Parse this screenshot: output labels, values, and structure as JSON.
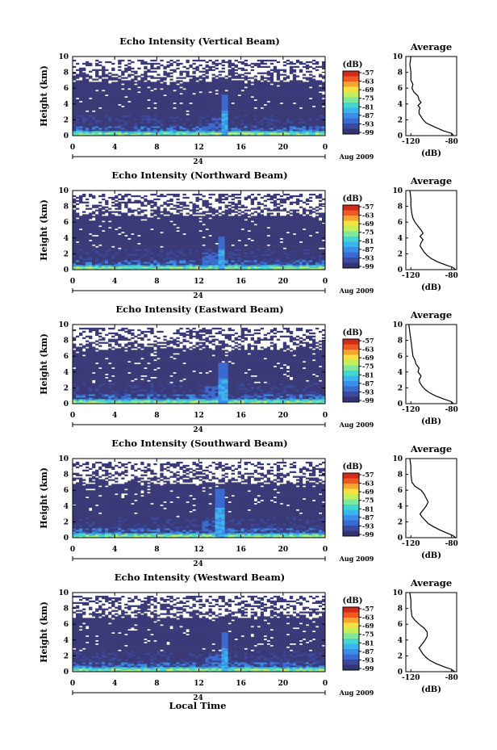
{
  "colors": {
    "background_echo": "#3a3a78",
    "colormap": [
      "#343474",
      "#3b4a9c",
      "#3a6ad0",
      "#3a8ee8",
      "#3ab6ec",
      "#42d6d2",
      "#7ee8a0",
      "#c6ee5a",
      "#f6e042",
      "#f6a62e",
      "#ee5a22",
      "#d42a1a"
    ]
  },
  "footer": {
    "local_time_label": "Local Time"
  },
  "chart_data": [
    {
      "type": "heatmap",
      "title": "Echo Intensity (Vertical Beam)",
      "ylabel": "Height (km)",
      "xticks": [
        "0",
        "4",
        "8",
        "12",
        "16",
        "20",
        "0"
      ],
      "yticks": [
        "0",
        "2",
        "4",
        "6",
        "8",
        "10"
      ],
      "xlim": [
        0,
        24
      ],
      "ylim": [
        0,
        10
      ],
      "date_mid": "24",
      "date_label": "Aug 2009",
      "colorbar": {
        "unit": "(dB)",
        "ticks": [
          "-57",
          "-63",
          "-69",
          "-75",
          "-81",
          "-87",
          "-93",
          "-99"
        ]
      },
      "spike_hour": 14.5,
      "spike_top_km": 5.2,
      "profile": {
        "title": "Average",
        "xlabel": "(dB)",
        "xticks": [
          "-120",
          "-80"
        ],
        "xlim": [
          -125,
          -75
        ],
        "points": [
          [
            -78,
            0
          ],
          [
            -80,
            0.3
          ],
          [
            -88,
            0.6
          ],
          [
            -95,
            1.0
          ],
          [
            -100,
            1.3
          ],
          [
            -105,
            1.6
          ],
          [
            -108,
            2.0
          ],
          [
            -110,
            2.4
          ],
          [
            -112,
            2.8
          ],
          [
            -112,
            3.2
          ],
          [
            -111,
            3.5
          ],
          [
            -113,
            3.8
          ],
          [
            -110,
            4.2
          ],
          [
            -112,
            4.5
          ],
          [
            -113,
            5.0
          ],
          [
            -117,
            5.5
          ],
          [
            -119,
            6.0
          ],
          [
            -118,
            6.5
          ],
          [
            -120,
            7.0
          ],
          [
            -120,
            8.0
          ],
          [
            -121,
            9.0
          ],
          [
            -120,
            10.0
          ]
        ]
      }
    },
    {
      "type": "heatmap",
      "title": "Echo Intensity (Northward Beam)",
      "ylabel": "Height (km)",
      "xticks": [
        "0",
        "4",
        "8",
        "12",
        "16",
        "20",
        "0"
      ],
      "yticks": [
        "0",
        "2",
        "4",
        "6",
        "8",
        "10"
      ],
      "xlim": [
        0,
        24
      ],
      "ylim": [
        0,
        10
      ],
      "date_mid": "24",
      "date_label": "Aug 2009",
      "colorbar": {
        "unit": "(dB)",
        "ticks": [
          "-57",
          "-63",
          "-69",
          "-75",
          "-81",
          "-87",
          "-93",
          "-99"
        ]
      },
      "spike_hour": 14.2,
      "spike_top_km": 4.2,
      "profile": {
        "title": "Average",
        "xlabel": "(dB)",
        "xticks": [
          "-120",
          "-80"
        ],
        "xlim": [
          -125,
          -75
        ],
        "points": [
          [
            -76,
            0
          ],
          [
            -79,
            0.3
          ],
          [
            -86,
            0.6
          ],
          [
            -94,
            1.0
          ],
          [
            -100,
            1.4
          ],
          [
            -104,
            1.8
          ],
          [
            -107,
            2.2
          ],
          [
            -109,
            2.6
          ],
          [
            -111,
            3.0
          ],
          [
            -110,
            3.4
          ],
          [
            -108,
            3.8
          ],
          [
            -111,
            4.2
          ],
          [
            -108,
            4.6
          ],
          [
            -110,
            5.0
          ],
          [
            -113,
            5.5
          ],
          [
            -116,
            6.0
          ],
          [
            -118,
            6.5
          ],
          [
            -119,
            7.0
          ],
          [
            -120,
            8.0
          ],
          [
            -120,
            9.0
          ],
          [
            -121,
            10.0
          ]
        ]
      }
    },
    {
      "type": "heatmap",
      "title": "Echo Intensity (Eastward Beam)",
      "ylabel": "Height (km)",
      "xticks": [
        "0",
        "4",
        "8",
        "12",
        "16",
        "20",
        "0"
      ],
      "yticks": [
        "0",
        "2",
        "4",
        "6",
        "8",
        "10"
      ],
      "xlim": [
        0,
        24
      ],
      "ylim": [
        0,
        10
      ],
      "date_mid": "24",
      "date_label": "Aug 2009",
      "colorbar": {
        "unit": "(dB)",
        "ticks": [
          "-57",
          "-63",
          "-69",
          "-75",
          "-81",
          "-87",
          "-93",
          "-99"
        ]
      },
      "spike_hour": 14.3,
      "spike_top_km": 5.2,
      "profile": {
        "title": "Average",
        "xlabel": "(dB)",
        "xticks": [
          "-120",
          "-80"
        ],
        "xlim": [
          -125,
          -75
        ],
        "points": [
          [
            -78,
            0
          ],
          [
            -81,
            0.3
          ],
          [
            -88,
            0.6
          ],
          [
            -96,
            1.0
          ],
          [
            -102,
            1.4
          ],
          [
            -106,
            1.8
          ],
          [
            -109,
            2.2
          ],
          [
            -111,
            2.6
          ],
          [
            -112,
            3.0
          ],
          [
            -110,
            3.5
          ],
          [
            -113,
            4.0
          ],
          [
            -112,
            4.5
          ],
          [
            -115,
            5.0
          ],
          [
            -116,
            5.5
          ],
          [
            -118,
            6.0
          ],
          [
            -119,
            7.0
          ],
          [
            -120,
            8.0
          ],
          [
            -121,
            9.0
          ],
          [
            -122,
            10.0
          ]
        ]
      }
    },
    {
      "type": "heatmap",
      "title": "Echo Intensity (Southward Beam)",
      "ylabel": "Height (km)",
      "xticks": [
        "0",
        "4",
        "8",
        "12",
        "16",
        "20",
        "0"
      ],
      "yticks": [
        "0",
        "2",
        "4",
        "6",
        "8",
        "10"
      ],
      "xlim": [
        0,
        24
      ],
      "ylim": [
        0,
        10
      ],
      "date_mid": "24",
      "date_label": "Aug 2009",
      "colorbar": {
        "unit": "(dB)",
        "ticks": [
          "-57",
          "-63",
          "-69",
          "-75",
          "-81",
          "-87",
          "-93",
          "-99"
        ]
      },
      "spike_hour": 14.0,
      "spike_top_km": 6.2,
      "profile": {
        "title": "Average",
        "xlabel": "(dB)",
        "xticks": [
          "-120",
          "-80"
        ],
        "xlim": [
          -125,
          -75
        ],
        "points": [
          [
            -76,
            0
          ],
          [
            -79,
            0.3
          ],
          [
            -85,
            0.6
          ],
          [
            -92,
            1.0
          ],
          [
            -98,
            1.4
          ],
          [
            -103,
            1.8
          ],
          [
            -106,
            2.2
          ],
          [
            -109,
            2.6
          ],
          [
            -111,
            3.0
          ],
          [
            -108,
            3.5
          ],
          [
            -105,
            4.0
          ],
          [
            -103,
            4.5
          ],
          [
            -105,
            5.0
          ],
          [
            -107,
            5.5
          ],
          [
            -110,
            6.0
          ],
          [
            -116,
            6.5
          ],
          [
            -119,
            7.0
          ],
          [
            -120,
            8.0
          ],
          [
            -120,
            9.0
          ],
          [
            -121,
            10.0
          ]
        ]
      }
    },
    {
      "type": "heatmap",
      "title": "Echo Intensity (Westward Beam)",
      "ylabel": "Height (km)",
      "xticks": [
        "0",
        "4",
        "8",
        "12",
        "16",
        "20",
        "0"
      ],
      "yticks": [
        "0",
        "2",
        "4",
        "6",
        "8",
        "10"
      ],
      "xlim": [
        0,
        24
      ],
      "ylim": [
        0,
        10
      ],
      "date_mid": "24",
      "date_label": "Aug 2009",
      "colorbar": {
        "unit": "(dB)",
        "ticks": [
          "-57",
          "-63",
          "-69",
          "-75",
          "-81",
          "-87",
          "-93",
          "-99"
        ]
      },
      "spike_hour": 14.4,
      "spike_top_km": 5.0,
      "profile": {
        "title": "Average",
        "xlabel": "(dB)",
        "xticks": [
          "-120",
          "-80"
        ],
        "xlim": [
          -125,
          -75
        ],
        "points": [
          [
            -77,
            0
          ],
          [
            -80,
            0.3
          ],
          [
            -87,
            0.6
          ],
          [
            -95,
            1.0
          ],
          [
            -101,
            1.4
          ],
          [
            -105,
            1.8
          ],
          [
            -108,
            2.2
          ],
          [
            -110,
            2.6
          ],
          [
            -112,
            3.0
          ],
          [
            -109,
            3.5
          ],
          [
            -106,
            4.0
          ],
          [
            -104,
            4.5
          ],
          [
            -104,
            5.0
          ],
          [
            -107,
            5.5
          ],
          [
            -112,
            6.0
          ],
          [
            -116,
            6.5
          ],
          [
            -119,
            7.0
          ],
          [
            -120,
            8.0
          ],
          [
            -120,
            9.0
          ],
          [
            -121,
            10.0
          ]
        ]
      }
    }
  ]
}
